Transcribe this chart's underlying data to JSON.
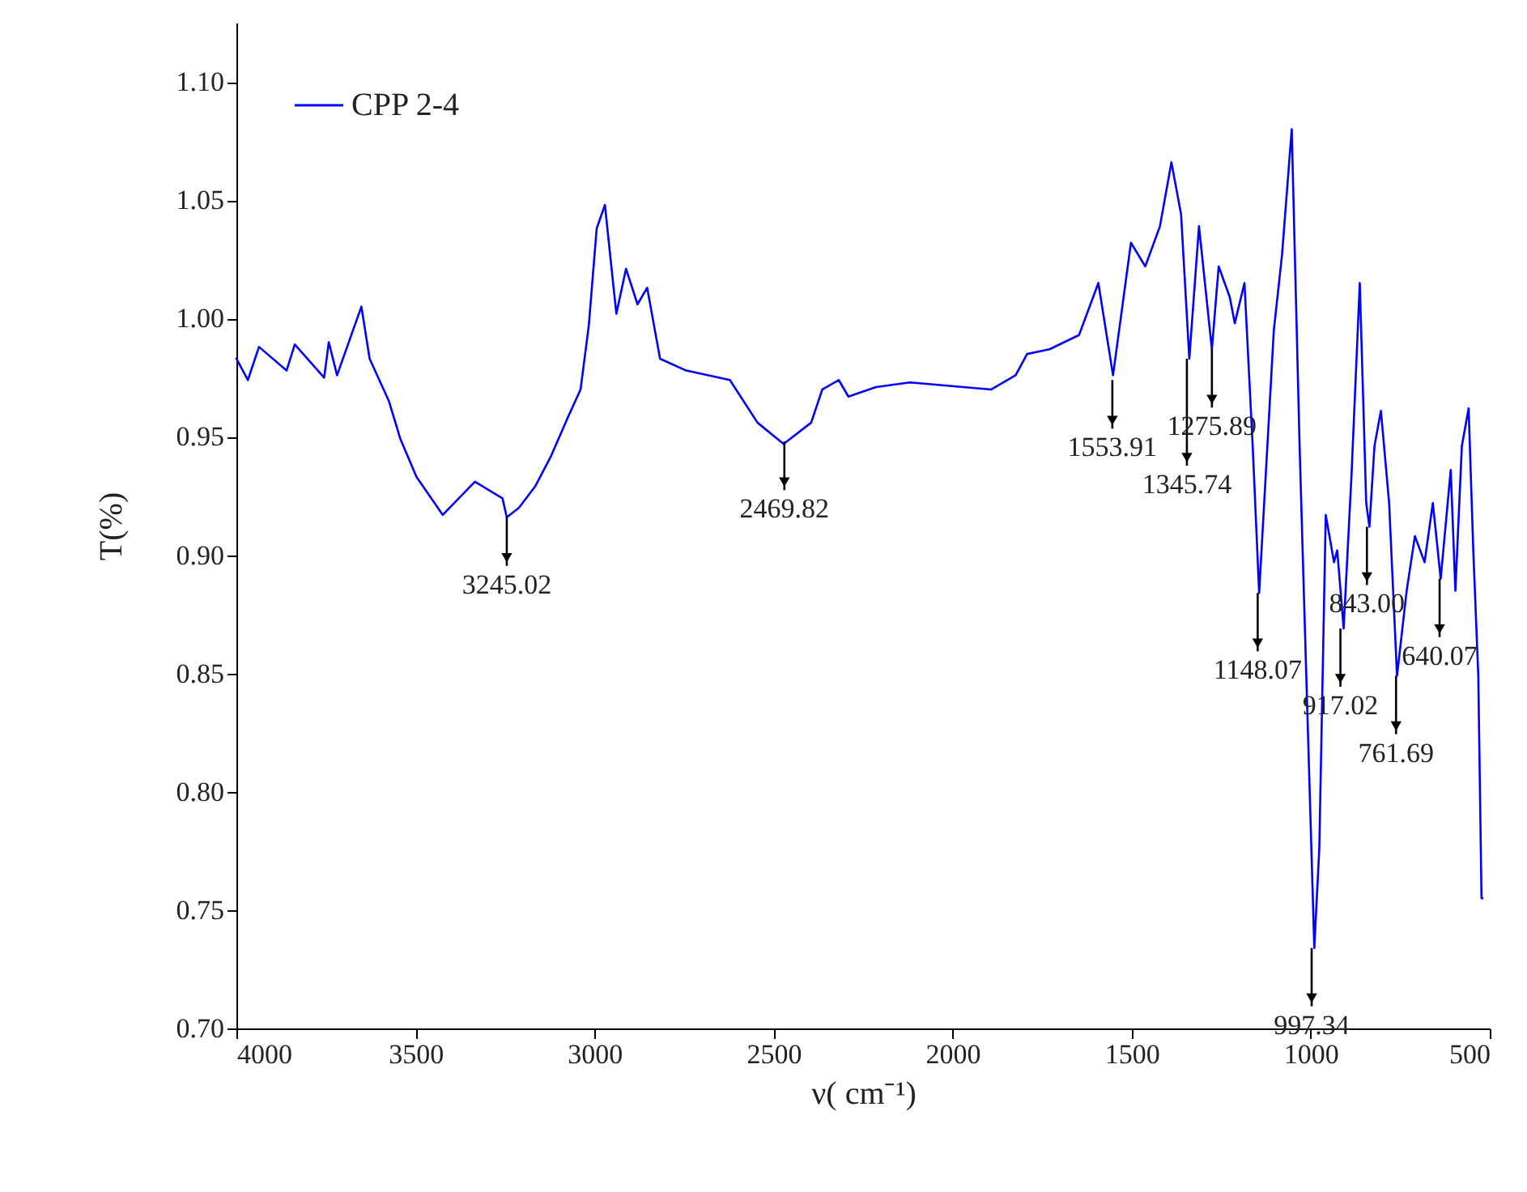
{
  "chart_data": {
    "type": "line",
    "xlabel": "ν( cm⁻¹)",
    "ylabel": "T(%)",
    "legend": "top left",
    "grid": false,
    "xlim": [
      4000,
      500
    ],
    "xticks": [
      4000,
      3500,
      3000,
      2500,
      2000,
      1500,
      1000,
      500
    ],
    "ylim": [
      0.7,
      1.125
    ],
    "yticks": [
      {
        "value": 0.7,
        "label": "0.70"
      },
      {
        "value": 0.75,
        "label": "0.75"
      },
      {
        "value": 0.8,
        "label": "0.80"
      },
      {
        "value": 0.85,
        "label": "0.85"
      },
      {
        "value": 0.9,
        "label": "0.90"
      },
      {
        "value": 0.95,
        "label": "0.95"
      },
      {
        "value": 1.0,
        "label": "1.00"
      },
      {
        "value": 1.05,
        "label": "1.05"
      },
      {
        "value": 1.1,
        "label": "1.10"
      }
    ],
    "series": [
      {
        "name": "CPP 2-4",
        "color": "#0000ff",
        "x": [
          4000,
          3968,
          3937,
          3860,
          3837,
          3755,
          3742,
          3719,
          3651,
          3628,
          3574,
          3542,
          3497,
          3424,
          3334,
          3257,
          3245.02,
          3211,
          3166,
          3121,
          3075,
          3039,
          3016,
          2994,
          2971,
          2953,
          2939,
          2912,
          2880,
          2853,
          2817,
          2744,
          2622,
          2545,
          2472,
          2395,
          2364,
          2318,
          2291,
          2214,
          2119,
          1892,
          1824,
          1792,
          1729,
          1647,
          1593,
          1552,
          1502,
          1462,
          1421,
          1389,
          1362,
          1339,
          1312,
          1276,
          1257,
          1226,
          1212,
          1185,
          1162,
          1144,
          1103,
          1080,
          1053,
          1031,
          1017,
          990,
          976,
          958,
          935,
          926,
          908,
          886,
          863,
          845,
          836,
          822,
          804,
          781,
          759,
          732,
          709,
          682,
          659,
          637,
          609,
          596,
          578,
          559,
          546,
          532,
          523,
          520
        ],
        "values": [
          0.983,
          0.974,
          0.988,
          0.978,
          0.989,
          0.975,
          0.99,
          0.976,
          1.005,
          0.983,
          0.965,
          0.949,
          0.933,
          0.917,
          0.931,
          0.924,
          0.916,
          0.92,
          0.929,
          0.942,
          0.958,
          0.97,
          0.997,
          1.038,
          1.048,
          1.022,
          1.002,
          1.021,
          1.006,
          1.013,
          0.983,
          0.978,
          0.974,
          0.956,
          0.947,
          0.956,
          0.97,
          0.974,
          0.967,
          0.971,
          0.973,
          0.97,
          0.976,
          0.985,
          0.987,
          0.993,
          1.015,
          0.976,
          1.032,
          1.022,
          1.039,
          1.066,
          1.044,
          0.983,
          1.039,
          0.987,
          1.022,
          1.009,
          0.998,
          1.015,
          0.946,
          0.884,
          0.995,
          1.027,
          1.08,
          0.946,
          0.873,
          0.734,
          0.776,
          0.917,
          0.897,
          0.902,
          0.869,
          0.934,
          1.015,
          0.922,
          0.912,
          0.946,
          0.961,
          0.922,
          0.849,
          0.885,
          0.908,
          0.897,
          0.922,
          0.89,
          0.936,
          0.885,
          0.946,
          0.962,
          0.902,
          0.849,
          0.755,
          0.755
        ]
      }
    ],
    "annotations": [
      {
        "text": "3245.02",
        "x": 3245.02,
        "y": 0.916
      },
      {
        "text": "2469.82",
        "x": 2469.82,
        "y": 0.948
      },
      {
        "text": "1553.91",
        "x": 1553.91,
        "y": 0.974
      },
      {
        "text": "1345.74",
        "x": 1345.74,
        "y": 0.983
      },
      {
        "text": "1275.89",
        "x": 1275.89,
        "y": 0.987
      },
      {
        "text": "1148.07",
        "x": 1148.07,
        "y": 0.884
      },
      {
        "text": "997.34",
        "x": 997.34,
        "y": 0.734
      },
      {
        "text": "917.02",
        "x": 917.02,
        "y": 0.869
      },
      {
        "text": "843.00",
        "x": 843.0,
        "y": 0.912
      },
      {
        "text": "761.69",
        "x": 761.69,
        "y": 0.849
      },
      {
        "text": "640.07",
        "x": 640.07,
        "y": 0.89
      }
    ]
  }
}
